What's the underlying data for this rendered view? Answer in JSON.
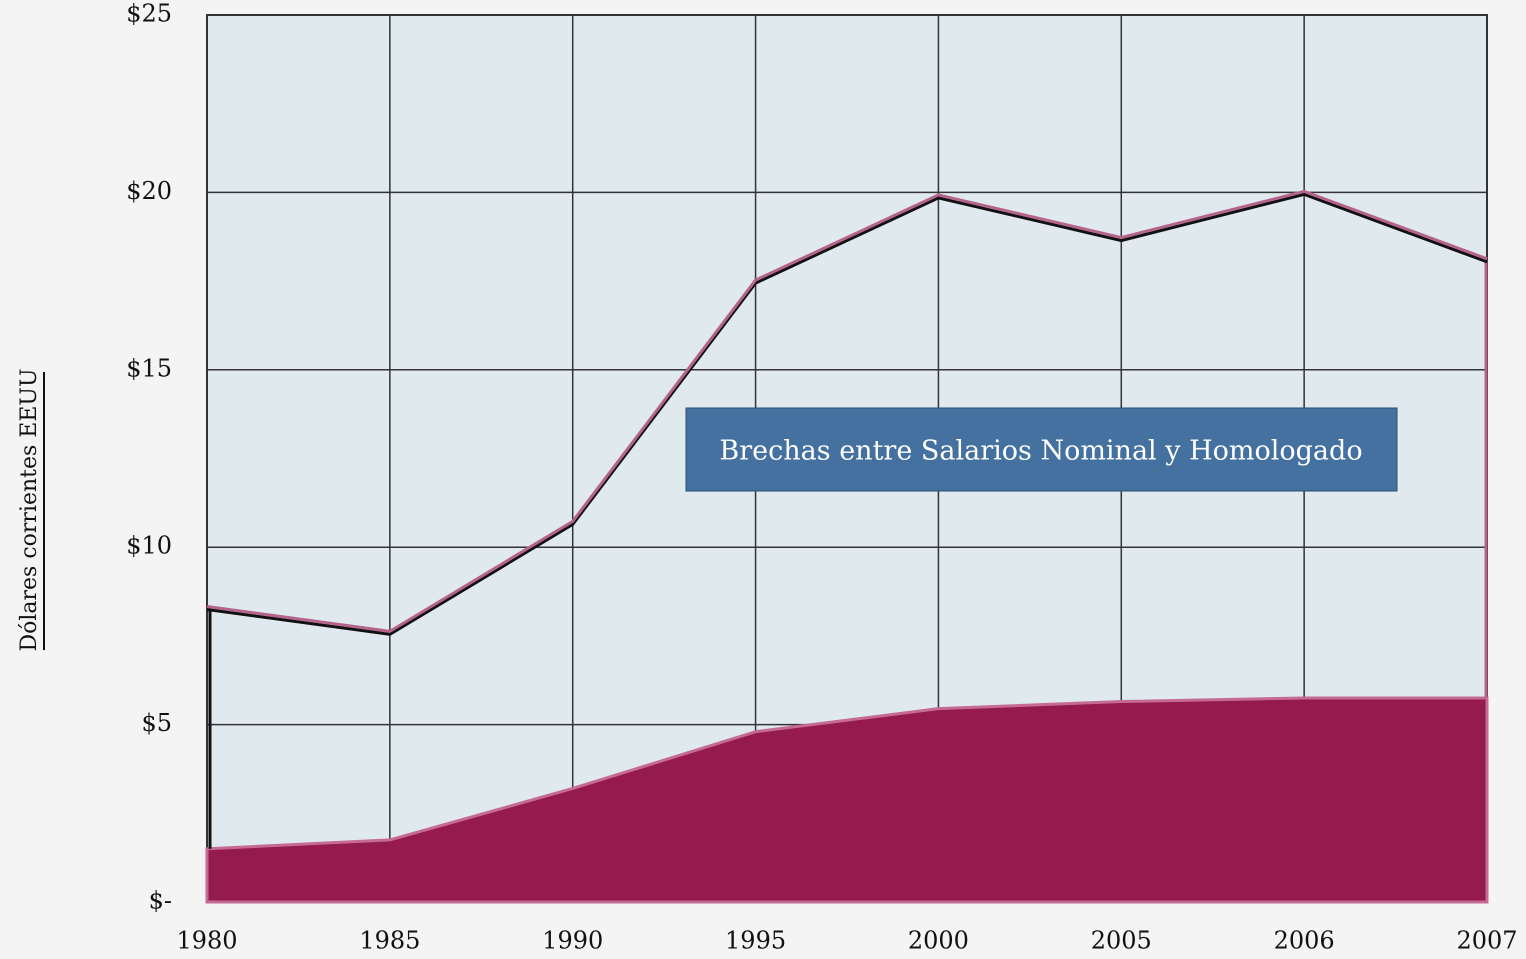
{
  "chart_data": {
    "type": "area",
    "annotation": "Brechas entre Salarios Nominal y Homologado",
    "y_label": "Dólares corrientes EEUU",
    "categories": [
      "1980",
      "1985",
      "1990",
      "1995",
      "2000",
      "2005",
      "2006",
      "2007"
    ],
    "series": [
      {
        "color": "#111111",
        "values": [
          8.3,
          7.6,
          10.7,
          17.5,
          19.9,
          18.7,
          20.0,
          18.1
        ]
      },
      {
        "color": "#951a50",
        "values": [
          1.5,
          1.75,
          3.2,
          4.8,
          5.45,
          5.65,
          5.75,
          5.75
        ]
      }
    ],
    "ylim": [
      0,
      25
    ],
    "yticks": [
      {
        "value": 0,
        "label": "$-"
      },
      {
        "value": 5,
        "label": "$5"
      },
      {
        "value": 10,
        "label": "$10"
      },
      {
        "value": 15,
        "label": "$15"
      },
      {
        "value": 20,
        "label": "$20"
      },
      {
        "value": 25,
        "label": "$25"
      }
    ],
    "grid": true
  }
}
